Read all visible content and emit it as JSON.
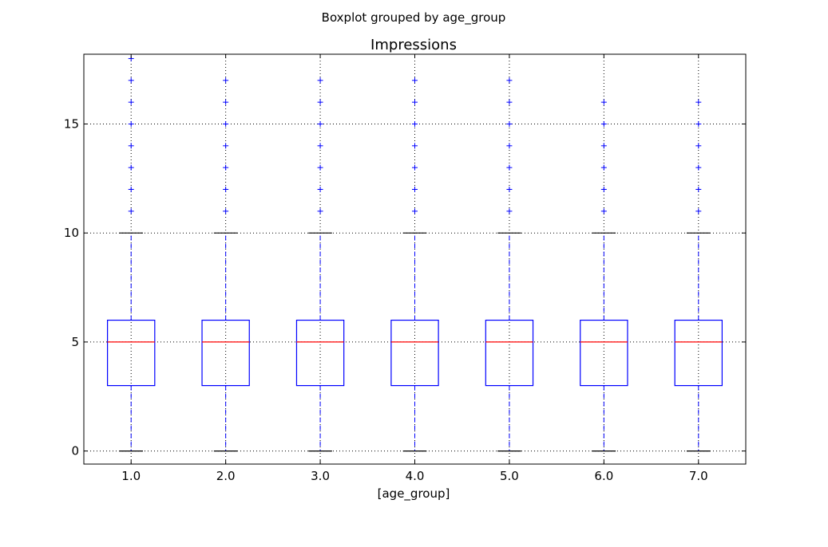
{
  "figure": {
    "suptitle": "Boxplot grouped by age_group"
  },
  "chart_data": {
    "type": "boxplot",
    "title": "Impressions",
    "xlabel": "[age_group]",
    "ylabel": "",
    "ylim": [
      -0.6,
      18.2
    ],
    "yticks": [
      0,
      5,
      10,
      15
    ],
    "ytick_labels": [
      "0",
      "5",
      "10",
      "15"
    ],
    "grid": true,
    "categories": [
      "1.0",
      "2.0",
      "3.0",
      "4.0",
      "5.0",
      "6.0",
      "7.0"
    ],
    "boxes": [
      {
        "group": "1.0",
        "whisker_low": 0,
        "q1": 3,
        "median": 5,
        "q3": 6,
        "whisker_high": 10,
        "outliers": [
          11,
          12,
          13,
          14,
          15,
          16,
          17,
          18
        ]
      },
      {
        "group": "2.0",
        "whisker_low": 0,
        "q1": 3,
        "median": 5,
        "q3": 6,
        "whisker_high": 10,
        "outliers": [
          11,
          12,
          13,
          14,
          15,
          16,
          17
        ]
      },
      {
        "group": "3.0",
        "whisker_low": 0,
        "q1": 3,
        "median": 5,
        "q3": 6,
        "whisker_high": 10,
        "outliers": [
          11,
          12,
          13,
          14,
          15,
          16,
          17
        ]
      },
      {
        "group": "4.0",
        "whisker_low": 0,
        "q1": 3,
        "median": 5,
        "q3": 6,
        "whisker_high": 10,
        "outliers": [
          11,
          12,
          13,
          14,
          15,
          16,
          17
        ]
      },
      {
        "group": "5.0",
        "whisker_low": 0,
        "q1": 3,
        "median": 5,
        "q3": 6,
        "whisker_high": 10,
        "outliers": [
          11,
          12,
          13,
          14,
          15,
          16,
          17
        ]
      },
      {
        "group": "6.0",
        "whisker_low": 0,
        "q1": 3,
        "median": 5,
        "q3": 6,
        "whisker_high": 10,
        "outliers": [
          11,
          12,
          13,
          14,
          15,
          16
        ]
      },
      {
        "group": "7.0",
        "whisker_low": 0,
        "q1": 3,
        "median": 5,
        "q3": 6,
        "whisker_high": 10,
        "outliers": [
          11,
          12,
          13,
          14,
          15,
          16
        ]
      }
    ],
    "colors": {
      "box": "#0000ff",
      "median": "#ff0000",
      "whisker": "#0000ff",
      "cap": "#000000",
      "outlier": "#0000ff",
      "grid": "#000000",
      "axes": "#000000"
    }
  }
}
